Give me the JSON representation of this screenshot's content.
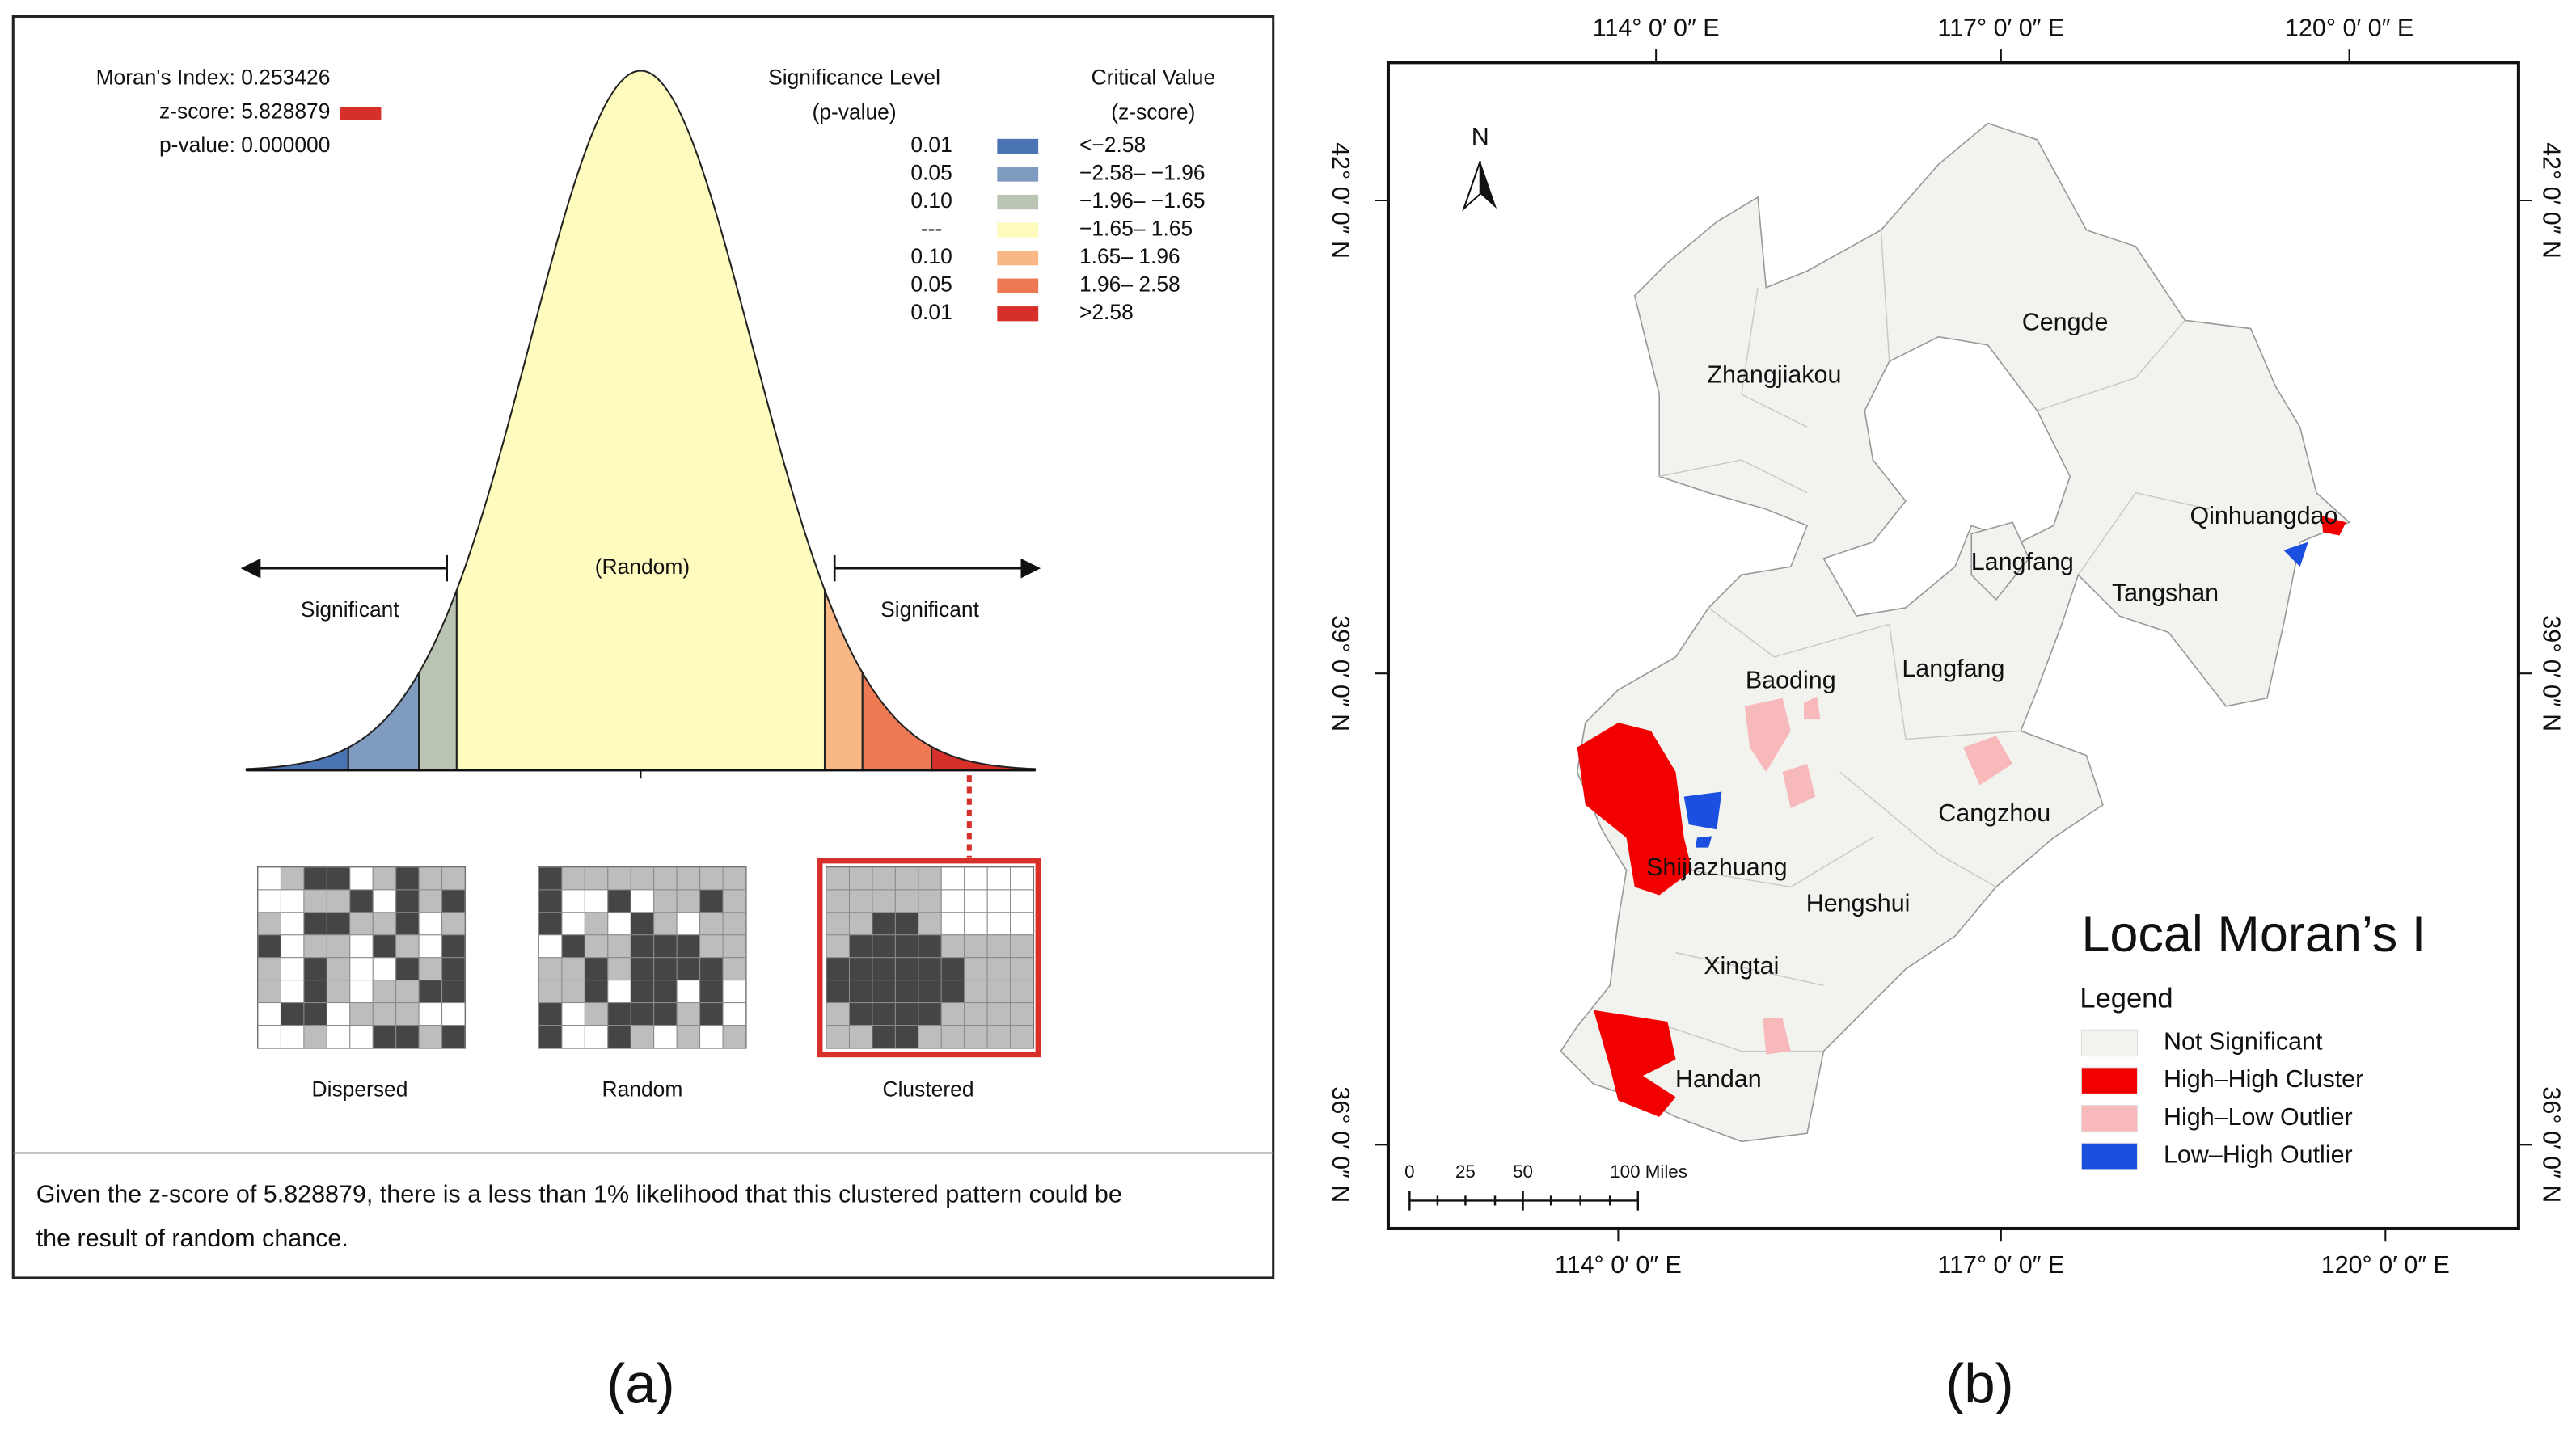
{
  "panel_a": {
    "stats": [
      "Moran's Index: 0.253426",
      "z-score: 5.828879",
      "p-value: 0.000000"
    ],
    "stat_marker_color": "#d7302b",
    "significance_header": [
      "Significance Level",
      "(p-value)"
    ],
    "critical_header": [
      "Critical Value",
      "(z-score)"
    ],
    "legend_rows": [
      {
        "p": "0.01",
        "z": "<−2.58",
        "color": "#4a74b4"
      },
      {
        "p": "0.05",
        "z": "−2.58– −1.96",
        "color": "#7f9bbf"
      },
      {
        "p": "0.10",
        "z": "−1.96– −1.65",
        "color": "#b9c5b2"
      },
      {
        "p": "---",
        "z": "−1.65– 1.65",
        "color": "#fdfbbd"
      },
      {
        "p": "0.10",
        "z": "1.65– 1.96",
        "color": "#f8b784"
      },
      {
        "p": "0.05",
        "z": "1.96– 2.58",
        "color": "#ee7a54"
      },
      {
        "p": "0.01",
        "z": ">2.58",
        "color": "#d7302b"
      }
    ],
    "random_label": "(Random)",
    "significant_left": "Significant",
    "significant_right": "Significant",
    "patterns": [
      "Dispersed",
      "Random",
      "Clustered"
    ],
    "conclusion": [
      "Given the z-score of 5.828879, there is a less than 1% likelihood that this clustered pattern could be",
      "the result of random chance."
    ],
    "caption": "(a)"
  },
  "panel_b": {
    "top_lon": [
      "114° 0′ 0″ E",
      "117° 0′ 0″ E",
      "120° 0′ 0″ E"
    ],
    "bottom_lon": [
      "114° 0′ 0″ E",
      "117° 0′ 0″ E",
      "120° 0′ 0″ E"
    ],
    "left_lat": [
      "42° 0′ 0″ N",
      "39° 0′ 0″ N",
      "36° 0′ 0″ N"
    ],
    "right_lat": [
      "42° 0′ 0″ N",
      "39° 0′ 0″ N",
      "36° 0′ 0″ N"
    ],
    "north": "N",
    "cities": [
      "Zhangjiakou",
      "Cengde",
      "Qinhuangdao",
      "Langfang",
      "Tangshan",
      "Baoding",
      "Langfang",
      "Cangzhou",
      "Shijiazhuang",
      "Hengshui",
      "Xingtai",
      "Handan"
    ],
    "title": "Local Moran’s I",
    "legend_title": "Legend",
    "legend": [
      {
        "label": "Not Significant",
        "color": "#f2f2ef"
      },
      {
        "label": "High–High Cluster",
        "color": "#f20000"
      },
      {
        "label": "High–Low Outlier",
        "color": "#f8b9bb"
      },
      {
        "label": "Low–High Outlier",
        "color": "#1a4fe0"
      }
    ],
    "scale": [
      "0",
      "25",
      "50",
      "100 Miles"
    ],
    "caption": "(b)"
  }
}
